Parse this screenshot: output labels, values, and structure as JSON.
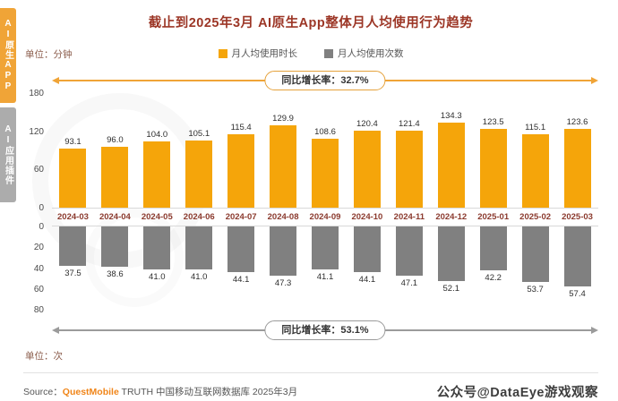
{
  "header": {
    "title": "截止到2025年3月 AI原生App整体月人均使用行为趋势"
  },
  "sidebar": {
    "tabs": [
      {
        "label": "AI原生APP"
      },
      {
        "label": "AI应用插件"
      }
    ]
  },
  "units": {
    "top": "单位：分钟",
    "bottom": "单位：次"
  },
  "colors": {
    "bar_yellow": "#F5A50A",
    "bar_gray": "#808080",
    "accent_orange": "#F0A437",
    "title_red": "#9C3626"
  },
  "chart_data": {
    "type": "bar",
    "title": "截止到2025年3月 AI原生App整体月人均使用行为趋势",
    "xlabel": "",
    "ylabel": "",
    "grid": false,
    "legend_position": "top",
    "categories": [
      "2024-03",
      "2024-04",
      "2024-05",
      "2024-06",
      "2024-07",
      "2024-08",
      "2024-09",
      "2024-10",
      "2024-11",
      "2024-12",
      "2025-01",
      "2025-02",
      "2025-03"
    ],
    "series": [
      {
        "name": "月人均使用时长",
        "unit": "分钟",
        "color": "#F5A50A",
        "values": [
          93.1,
          96.0,
          104.0,
          105.1,
          115.4,
          129.9,
          108.6,
          120.4,
          121.4,
          134.3,
          123.5,
          115.1,
          123.6
        ],
        "ylim": [
          0,
          180
        ],
        "yticks": [
          0,
          60,
          120,
          180
        ],
        "growth_label": "同比增长率：32.7%"
      },
      {
        "name": "月人均使用次数",
        "unit": "次",
        "color": "#808080",
        "values": [
          37.5,
          38.6,
          41.0,
          41.0,
          44.1,
          47.3,
          41.1,
          44.1,
          47.1,
          52.1,
          42.2,
          53.7,
          57.4
        ],
        "ylim": [
          0,
          80
        ],
        "yticks": [
          0,
          20,
          40,
          60,
          80
        ],
        "growth_label": "同比增长率：53.1%"
      }
    ]
  },
  "source": {
    "prefix": "Source：",
    "brand": "QuestMobile",
    "suffix": " TRUTH 中国移动互联网数据库 2025年3月"
  },
  "watermark": {
    "text": "公众号@DataEye游戏观察"
  }
}
